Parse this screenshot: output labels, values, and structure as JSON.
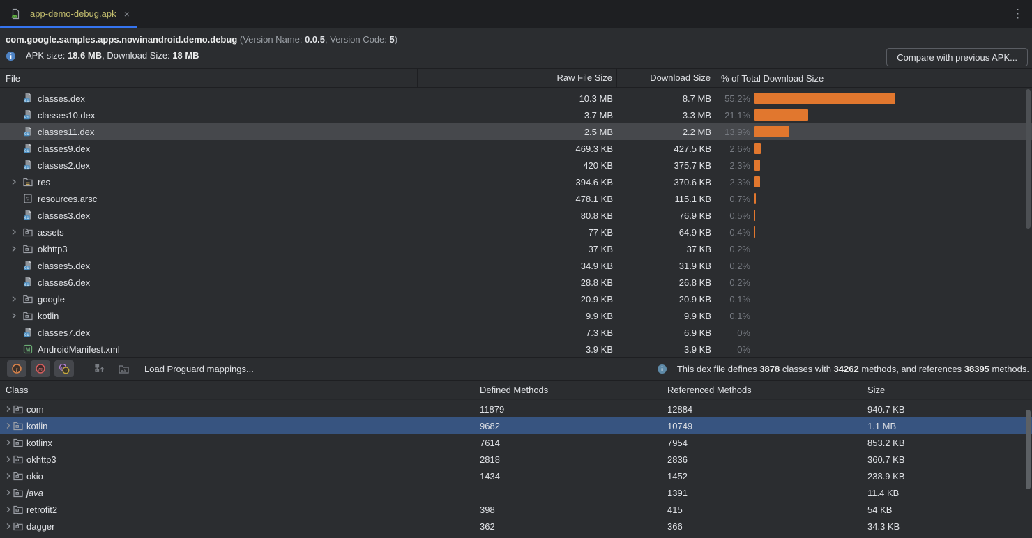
{
  "colors": {
    "accent_blue": "#3574f0",
    "bar_orange": "#e1772e",
    "selection_blue": "#375480",
    "selection_gray": "#46484c",
    "tab_label_yellow": "#c3bd6e"
  },
  "tab_bar": {
    "tab_label": "app-demo-debug.apk",
    "close_glyph": "×",
    "kebab_glyph": "⋮"
  },
  "header": {
    "package_name": "com.google.samples.apps.nowinandroid.demo.debug",
    "version_prefix": " (Version Name: ",
    "version_name": "0.0.5",
    "version_mid": ", Version Code: ",
    "version_code": "5",
    "version_suffix": ")",
    "apk_size_label": "APK size: ",
    "apk_size_value": "18.6 MB",
    "download_size_label": ", Download Size: ",
    "download_size_value": "18 MB",
    "compare_button_label": "Compare with previous APK..."
  },
  "file_table": {
    "columns": [
      "File",
      "Raw File Size",
      "Download Size",
      "% of Total Download Size"
    ],
    "rows": [
      {
        "name": "classes.dex",
        "icon": "dex-file-icon",
        "expandable": false,
        "raw": "10.3 MB",
        "download": "8.7 MB",
        "pct": 55.2,
        "pct_label": "55.2%",
        "selected": false
      },
      {
        "name": "classes10.dex",
        "icon": "dex-file-icon",
        "expandable": false,
        "raw": "3.7 MB",
        "download": "3.3 MB",
        "pct": 21.1,
        "pct_label": "21.1%",
        "selected": false
      },
      {
        "name": "classes11.dex",
        "icon": "dex-file-icon",
        "expandable": false,
        "raw": "2.5 MB",
        "download": "2.2 MB",
        "pct": 13.9,
        "pct_label": "13.9%",
        "selected": true
      },
      {
        "name": "classes9.dex",
        "icon": "dex-file-icon",
        "expandable": false,
        "raw": "469.3 KB",
        "download": "427.5 KB",
        "pct": 2.6,
        "pct_label": "2.6%",
        "selected": false
      },
      {
        "name": "classes2.dex",
        "icon": "dex-file-icon",
        "expandable": false,
        "raw": "420 KB",
        "download": "375.7 KB",
        "pct": 2.3,
        "pct_label": "2.3%",
        "selected": false
      },
      {
        "name": "res",
        "icon": "res-folder-icon",
        "expandable": true,
        "raw": "394.6 KB",
        "download": "370.6 KB",
        "pct": 2.3,
        "pct_label": "2.3%",
        "selected": false
      },
      {
        "name": "resources.arsc",
        "icon": "arsc-file-icon",
        "expandable": false,
        "raw": "478.1 KB",
        "download": "115.1 KB",
        "pct": 0.7,
        "pct_label": "0.7%",
        "selected": false
      },
      {
        "name": "classes3.dex",
        "icon": "dex-file-icon",
        "expandable": false,
        "raw": "80.8 KB",
        "download": "76.9 KB",
        "pct": 0.5,
        "pct_label": "0.5%",
        "selected": false
      },
      {
        "name": "assets",
        "icon": "folder-icon",
        "expandable": true,
        "raw": "77 KB",
        "download": "64.9 KB",
        "pct": 0.4,
        "pct_label": "0.4%",
        "selected": false
      },
      {
        "name": "okhttp3",
        "icon": "folder-icon",
        "expandable": true,
        "raw": "37 KB",
        "download": "37 KB",
        "pct": 0.2,
        "pct_label": "0.2%",
        "selected": false
      },
      {
        "name": "classes5.dex",
        "icon": "dex-file-icon",
        "expandable": false,
        "raw": "34.9 KB",
        "download": "31.9 KB",
        "pct": 0.2,
        "pct_label": "0.2%",
        "selected": false
      },
      {
        "name": "classes6.dex",
        "icon": "dex-file-icon",
        "expandable": false,
        "raw": "28.8 KB",
        "download": "26.8 KB",
        "pct": 0.2,
        "pct_label": "0.2%",
        "selected": false
      },
      {
        "name": "google",
        "icon": "folder-icon",
        "expandable": true,
        "raw": "20.9 KB",
        "download": "20.9 KB",
        "pct": 0.1,
        "pct_label": "0.1%",
        "selected": false
      },
      {
        "name": "kotlin",
        "icon": "folder-icon",
        "expandable": true,
        "raw": "9.9 KB",
        "download": "9.9 KB",
        "pct": 0.1,
        "pct_label": "0.1%",
        "selected": false
      },
      {
        "name": "classes7.dex",
        "icon": "dex-file-icon",
        "expandable": false,
        "raw": "7.3 KB",
        "download": "6.9 KB",
        "pct": 0,
        "pct_label": "0%",
        "selected": false
      },
      {
        "name": "AndroidManifest.xml",
        "icon": "manifest-file-icon",
        "expandable": false,
        "raw": "3.9 KB",
        "download": "3.9 KB",
        "pct": 0,
        "pct_label": "0%",
        "selected": false
      }
    ]
  },
  "toolbar": {
    "load_mappings_label": "Load Proguard mappings...",
    "dex_info_parts": [
      {
        "text": "This dex file defines ",
        "bold": false
      },
      {
        "text": "3878",
        "bold": true
      },
      {
        "text": " classes with ",
        "bold": false
      },
      {
        "text": "34262",
        "bold": true
      },
      {
        "text": " methods, and references ",
        "bold": false
      },
      {
        "text": "38395",
        "bold": true
      },
      {
        "text": " methods.",
        "bold": false
      }
    ]
  },
  "class_table": {
    "columns": [
      "Class",
      "Defined Methods",
      "Referenced Methods",
      "Size"
    ],
    "rows": [
      {
        "name": "com",
        "defined": "11879",
        "referenced": "12884",
        "size": "940.7 KB",
        "italic": false,
        "selected": false
      },
      {
        "name": "kotlin",
        "defined": "9682",
        "referenced": "10749",
        "size": "1.1 MB",
        "italic": false,
        "selected": true
      },
      {
        "name": "kotlinx",
        "defined": "7614",
        "referenced": "7954",
        "size": "853.2 KB",
        "italic": false,
        "selected": false
      },
      {
        "name": "okhttp3",
        "defined": "2818",
        "referenced": "2836",
        "size": "360.7 KB",
        "italic": false,
        "selected": false
      },
      {
        "name": "okio",
        "defined": "1434",
        "referenced": "1452",
        "size": "238.9 KB",
        "italic": false,
        "selected": false
      },
      {
        "name": "java",
        "defined": "",
        "referenced": "1391",
        "size": "11.4 KB",
        "italic": true,
        "selected": false
      },
      {
        "name": "retrofit2",
        "defined": "398",
        "referenced": "415",
        "size": "54 KB",
        "italic": false,
        "selected": false
      },
      {
        "name": "dagger",
        "defined": "362",
        "referenced": "366",
        "size": "34.3 KB",
        "italic": false,
        "selected": false
      }
    ]
  }
}
